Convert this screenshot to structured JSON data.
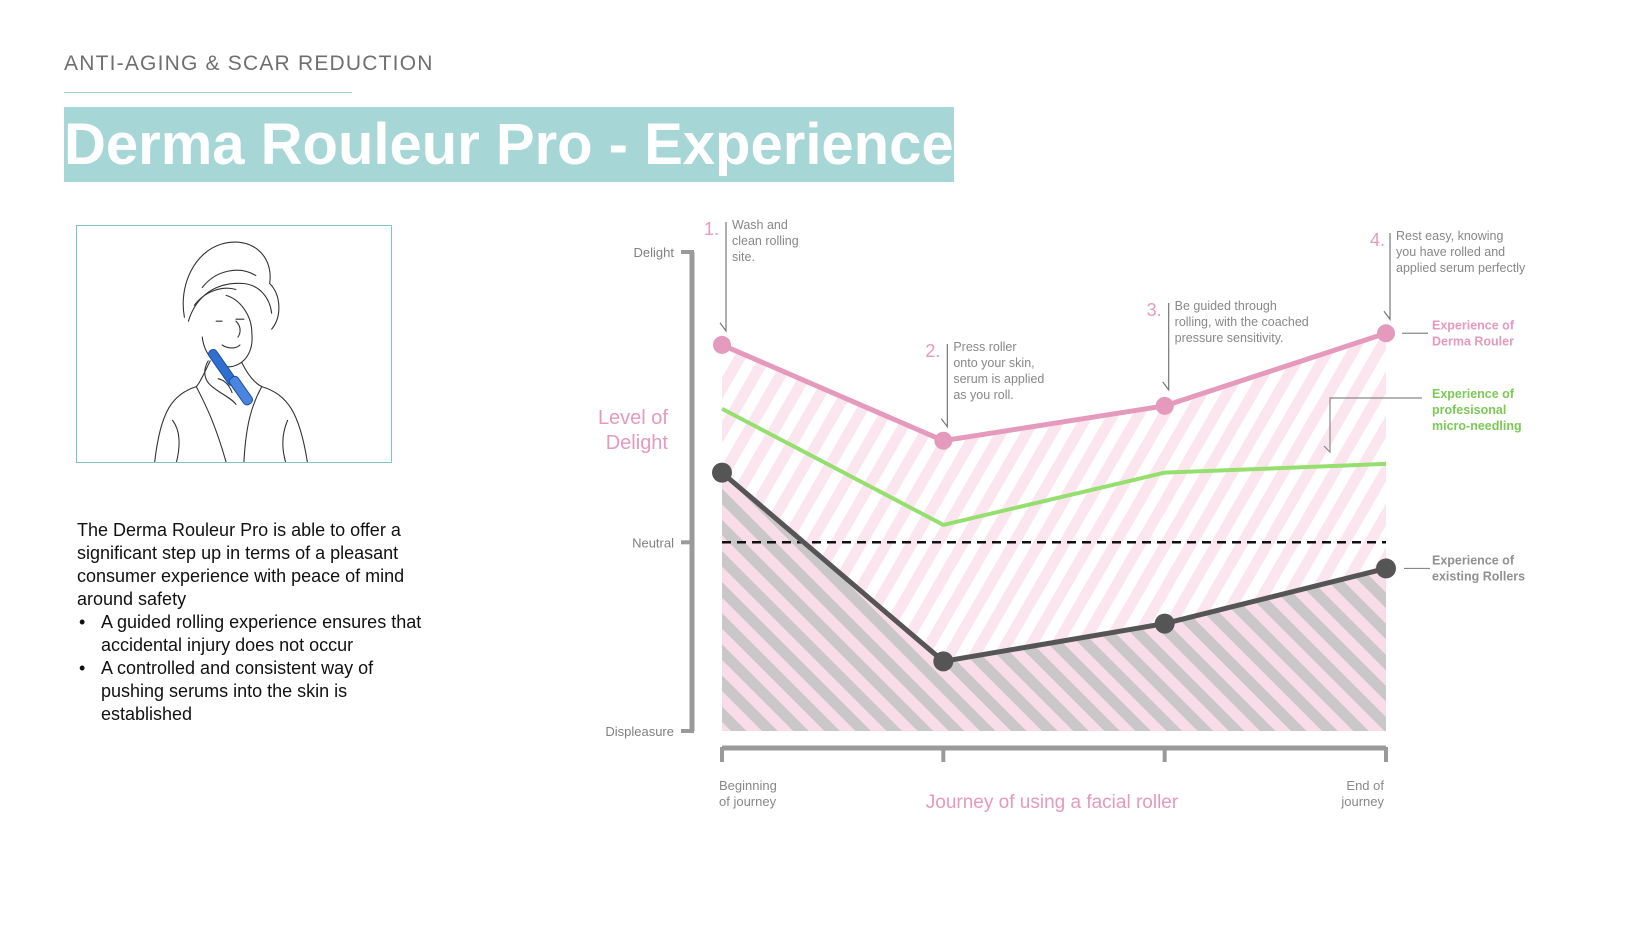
{
  "header": {
    "eyebrow": "ANTI-AGING & SCAR REDUCTION",
    "title": "Derma Rouleur Pro - Experience"
  },
  "description": {
    "intro": "The Derma Rouleur Pro is able to offer a significant step up in terms of a pleasant consumer experience with peace of mind around safety",
    "bullets": [
      "A guided rolling experience ensures that accidental injury does not occur",
      "A controlled and consistent way of pushing serums into the skin is established"
    ]
  },
  "image": {
    "alt_icon": "woman-with-towel-using-facial-roller-sketch"
  },
  "chart_data": {
    "type": "line",
    "title": "",
    "x_axis_label": "Journey of using a facial roller",
    "x_tick_labels": [
      {
        "lines": [
          "Beginning",
          "of journey"
        ]
      },
      {
        "lines": []
      },
      {
        "lines": []
      },
      {
        "lines": [
          "End of",
          "journey"
        ]
      }
    ],
    "x": [
      1,
      2,
      3,
      4
    ],
    "y_axis_label_lines": [
      "Level of",
      "Delight"
    ],
    "y_ticks": [
      {
        "label": "Delight",
        "value": 100
      },
      {
        "label": "Neutral",
        "value": 0
      },
      {
        "label": "Displeasure",
        "value": -65
      }
    ],
    "ylim": [
      -65,
      100
    ],
    "reference_line": {
      "value": 0,
      "style": "dashed"
    },
    "series": [
      {
        "name_lines": [
          "Experience of",
          "Derma Rouler"
        ],
        "color": "#e59abd",
        "markers": true,
        "values": [
          68,
          35,
          47,
          72
        ]
      },
      {
        "name_lines": [
          "Experience of",
          "profesisonal",
          "micro-needling"
        ],
        "color": "#95df6f",
        "markers": false,
        "values": [
          46,
          6,
          24,
          27
        ]
      },
      {
        "name_lines": [
          "Experience of",
          "existing Rollers"
        ],
        "color": "#555555",
        "markers": true,
        "values": [
          24,
          -41,
          -28,
          -9
        ]
      }
    ],
    "annotations": [
      {
        "num": "1.",
        "x": 1,
        "lines": [
          "Wash and",
          "clean rolling",
          "site."
        ]
      },
      {
        "num": "2.",
        "x": 2,
        "lines": [
          "Press roller",
          "onto your skin,",
          "serum is applied",
          "as you roll."
        ]
      },
      {
        "num": "3.",
        "x": 3,
        "lines": [
          "Be guided through",
          "rolling, with the coached",
          "pressure sensitivity."
        ]
      },
      {
        "num": "4.",
        "x": 4,
        "lines": [
          "Rest easy, knowing",
          "you have rolled and",
          "applied serum perfectly"
        ]
      }
    ],
    "colors": {
      "axis": "#9a9a9a",
      "accent_pink": "#e59abd",
      "label_gray": "#888888"
    }
  }
}
